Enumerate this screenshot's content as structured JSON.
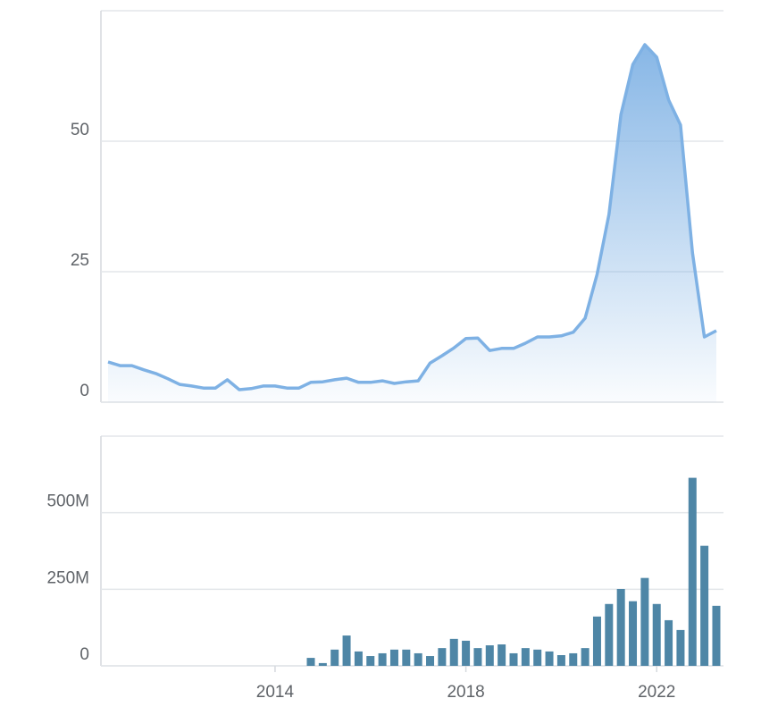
{
  "chart_data": [
    {
      "type": "area",
      "x": [
        2010.5,
        2010.75,
        2011,
        2011.25,
        2011.5,
        2011.75,
        2012,
        2012.25,
        2012.5,
        2012.75,
        2013,
        2013.25,
        2013.5,
        2013.75,
        2014,
        2014.25,
        2014.5,
        2014.75,
        2015,
        2015.25,
        2015.5,
        2015.75,
        2016,
        2016.25,
        2016.5,
        2016.75,
        2017,
        2017.25,
        2017.5,
        2017.75,
        2018,
        2018.25,
        2018.5,
        2018.75,
        2019,
        2019.25,
        2019.5,
        2019.75,
        2020,
        2020.25,
        2020.5,
        2020.75,
        2021,
        2021.25,
        2021.5,
        2021.75,
        2022,
        2022.25,
        2022.5,
        2022.75,
        2023,
        2023.25
      ],
      "values": [
        7.7,
        7.0,
        7.0,
        6.2,
        5.5,
        4.5,
        3.4,
        3.1,
        2.7,
        2.7,
        4.3,
        2.4,
        2.6,
        3.1,
        3.1,
        2.7,
        2.7,
        3.8,
        3.9,
        4.3,
        4.6,
        3.8,
        3.8,
        4.1,
        3.6,
        3.9,
        4.1,
        7.5,
        8.9,
        10.4,
        12.2,
        12.3,
        9.9,
        10.3,
        10.3,
        11.3,
        12.5,
        12.5,
        12.7,
        13.4,
        16.1,
        24.5,
        36,
        55.1,
        64.7,
        68.5,
        66.1,
        57.9,
        53.1,
        28.6,
        12.5,
        13.7
      ],
      "color": "#7eb1e4",
      "xlim": [
        2010.35,
        2023.4
      ],
      "ylim": [
        0,
        75
      ],
      "yticks": [
        0,
        25,
        50
      ],
      "grid": true
    },
    {
      "type": "bar",
      "x": [
        2014.75,
        2015,
        2015.25,
        2015.5,
        2015.75,
        2016,
        2016.25,
        2016.5,
        2016.75,
        2017,
        2017.25,
        2017.5,
        2017.75,
        2018,
        2018.25,
        2018.5,
        2018.75,
        2019,
        2019.25,
        2019.5,
        2019.75,
        2020,
        2020.25,
        2020.5,
        2020.75,
        2021,
        2021.25,
        2021.5,
        2021.75,
        2022,
        2022.25,
        2022.5,
        2022.75,
        2023,
        2023.25
      ],
      "values": [
        26000000,
        9000000,
        53000000,
        99000000,
        47000000,
        32000000,
        41000000,
        53000000,
        53000000,
        41000000,
        32000000,
        58000000,
        88000000,
        82000000,
        58000000,
        67000000,
        70000000,
        41000000,
        58000000,
        53000000,
        47000000,
        35000000,
        41000000,
        58000000,
        161000000,
        202000000,
        251000000,
        211000000,
        287000000,
        202000000,
        149000000,
        117000000,
        614000000,
        392000000,
        196000000
      ],
      "color": "#4e86a6",
      "xlim": [
        2010.35,
        2023.4
      ],
      "xticks": [
        2014,
        2018,
        2022
      ],
      "ylim": [
        0,
        750000000
      ],
      "yticks": [
        0,
        {
          "value": 250000000,
          "label": "250M"
        },
        {
          "value": 500000000,
          "label": "500M"
        }
      ],
      "grid": true
    }
  ]
}
